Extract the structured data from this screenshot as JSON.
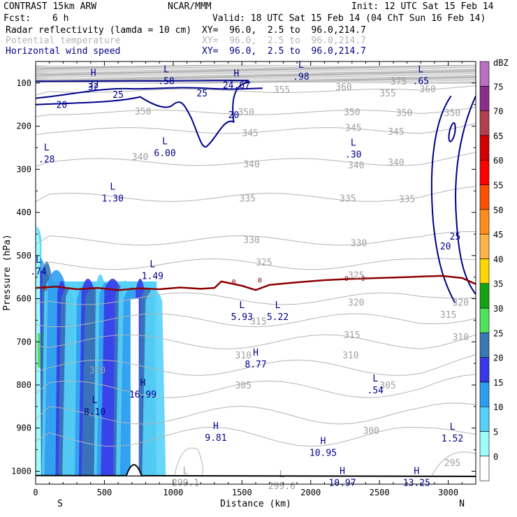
{
  "header": {
    "model": "CONTRAST 15km ARW",
    "center": "NCAR/MMM",
    "init": "Init: 12 UTC Sat 15 Feb 14",
    "fcst_label": "Fcst:",
    "fcst_value": "6 h",
    "valid": "Valid: 18 UTC Sat 15 Feb 14 (04 ChT Sun 16 Feb 14)"
  },
  "fields": [
    {
      "name": "Radar reflectivity (lamda = 10 cm)",
      "xy": "XY=  96.0,  2.5 to  96.0,214.7",
      "color": "#000000"
    },
    {
      "name": "Potential temperature",
      "xy": "XY=  96.0,  2.5 to  96.0,214.7",
      "color": "#b4b4b4"
    },
    {
      "name": "Horizontal wind speed",
      "xy": "XY=  96.0,  2.5 to  96.0,214.7",
      "color": "#00008b"
    }
  ],
  "chart_data": {
    "type": "cross-section",
    "xlabel": "Distance (km)",
    "ylabel": "Pressure (hPa)",
    "xlim": [
      0,
      3200
    ],
    "ylim": [
      1030,
      50
    ],
    "x_ticks": [
      0,
      500,
      1000,
      1500,
      2000,
      2500,
      3000
    ],
    "y_ticks": [
      100,
      200,
      300,
      400,
      500,
      600,
      700,
      800,
      900,
      1000
    ],
    "x_end_labels": {
      "left": "S",
      "right": "N"
    },
    "colorbar": {
      "title": "dBZ",
      "levels": [
        0,
        5,
        10,
        15,
        20,
        25,
        30,
        35,
        40,
        45,
        50,
        55,
        60,
        65,
        70,
        75
      ],
      "colors": [
        "#ffffff",
        "#9ffcfc",
        "#56d2fa",
        "#2f9df0",
        "#3838e8",
        "#3878b4",
        "#4fe15a",
        "#13a313",
        "#ffd700",
        "#ffb347",
        "#ff8c1a",
        "#ff5000",
        "#ff0000",
        "#d20000",
        "#b04050",
        "#8a2e8a",
        "#b870c0"
      ]
    },
    "reflectivity_columns": [
      {
        "x": 10,
        "top": 420
      },
      {
        "x": 25,
        "top": 490
      },
      {
        "x": 50,
        "top": 520
      },
      {
        "x": 80,
        "top": 500
      },
      {
        "x": 110,
        "top": 540
      },
      {
        "x": 150,
        "top": 520
      },
      {
        "x": 190,
        "top": 545
      },
      {
        "x": 230,
        "top": 560
      },
      {
        "x": 280,
        "top": 555
      },
      {
        "x": 330,
        "top": 565
      },
      {
        "x": 380,
        "top": 540
      },
      {
        "x": 420,
        "top": 560
      },
      {
        "x": 470,
        "top": 530
      },
      {
        "x": 510,
        "top": 550
      },
      {
        "x": 560,
        "top": 540
      },
      {
        "x": 610,
        "top": 555
      },
      {
        "x": 650,
        "top": 545
      },
      {
        "x": 700,
        "top": 560
      },
      {
        "x": 760,
        "top": 540
      },
      {
        "x": 810,
        "top": 560
      },
      {
        "x": 860,
        "top": 565
      }
    ],
    "freezing_level": {
      "label": "0",
      "pressure": [
        575,
        572,
        578,
        575,
        580,
        576,
        578,
        574,
        577,
        575,
        560,
        570,
        580,
        568,
        562,
        557,
        554,
        552,
        550,
        548,
        547,
        552,
        566
      ],
      "x": [
        0,
        150,
        300,
        450,
        600,
        750,
        900,
        1050,
        1200,
        1300,
        1350,
        1500,
        1600,
        1700,
        1900,
        2100,
        2300,
        2500,
        2700,
        2850,
        2950,
        3100,
        3200
      ]
    },
    "theta_labels": [
      {
        "value": "375",
        "x": 2640,
        "p": 95
      },
      {
        "value": "355",
        "x": 1790,
        "p": 115
      },
      {
        "value": "360",
        "x": 2240,
        "p": 108
      },
      {
        "value": "360",
        "x": 2850,
        "p": 113
      },
      {
        "value": "355",
        "x": 2560,
        "p": 123
      },
      {
        "value": "350",
        "x": 1530,
        "p": 167
      },
      {
        "value": "350",
        "x": 2300,
        "p": 167
      },
      {
        "value": "350",
        "x": 2680,
        "p": 168
      },
      {
        "value": "350",
        "x": 3030,
        "p": 168
      },
      {
        "value": "350",
        "x": 780,
        "p": 165
      },
      {
        "value": "345",
        "x": 1560,
        "p": 215
      },
      {
        "value": "345",
        "x": 2310,
        "p": 203
      },
      {
        "value": "345",
        "x": 2620,
        "p": 212
      },
      {
        "value": "340",
        "x": 760,
        "p": 270
      },
      {
        "value": "340",
        "x": 1570,
        "p": 287
      },
      {
        "value": "340",
        "x": 2330,
        "p": 290
      },
      {
        "value": "340",
        "x": 2620,
        "p": 283
      },
      {
        "value": "335",
        "x": 1540,
        "p": 367
      },
      {
        "value": "335",
        "x": 2270,
        "p": 367
      },
      {
        "value": "335",
        "x": 2700,
        "p": 368
      },
      {
        "value": "330",
        "x": 1570,
        "p": 463
      },
      {
        "value": "330",
        "x": 2350,
        "p": 470
      },
      {
        "value": "325",
        "x": 1660,
        "p": 515
      },
      {
        "value": "325",
        "x": 2330,
        "p": 545
      },
      {
        "value": "320",
        "x": 2330,
        "p": 608
      },
      {
        "value": "320",
        "x": 3090,
        "p": 608
      },
      {
        "value": "315",
        "x": 1620,
        "p": 652
      },
      {
        "value": "315",
        "x": 2300,
        "p": 683
      },
      {
        "value": "315",
        "x": 3000,
        "p": 636
      },
      {
        "value": "310",
        "x": 2290,
        "p": 730
      },
      {
        "value": "310",
        "x": 3090,
        "p": 688
      },
      {
        "value": "310",
        "x": 450,
        "p": 765
      },
      {
        "value": "305",
        "x": 1510,
        "p": 800
      },
      {
        "value": "305",
        "x": 2560,
        "p": 800
      },
      {
        "value": "300",
        "x": 2440,
        "p": 905
      },
      {
        "value": "295",
        "x": 3030,
        "p": 980
      },
      {
        "value": "310",
        "x": 1510,
        "p": 730
      }
    ],
    "wind_labels": [
      {
        "value": "32",
        "x": 420,
        "p": 108
      },
      {
        "value": "25",
        "x": 600,
        "p": 126
      },
      {
        "value": "20",
        "x": 190,
        "p": 150
      },
      {
        "value": "25",
        "x": 1210,
        "p": 123
      },
      {
        "value": "20",
        "x": 1440,
        "p": 173
      },
      {
        "value": "25",
        "x": 3050,
        "p": 455
      },
      {
        "value": "20",
        "x": 2980,
        "p": 478
      }
    ],
    "extrema": [
      {
        "kind": "H",
        "value": "32",
        "x": 420,
        "p": 91
      },
      {
        "kind": "L",
        "value": ".58",
        "x": 950,
        "p": 83
      },
      {
        "kind": "H",
        "value": "24.67",
        "x": 1460,
        "p": 93
      },
      {
        "kind": "L",
        "value": ".98",
        "x": 1930,
        "p": 73
      },
      {
        "kind": "L",
        "value": ".65",
        "x": 2800,
        "p": 83
      },
      {
        "kind": "L",
        "value": ".28",
        "x": 80,
        "p": 265
      },
      {
        "kind": "L",
        "value": "6.00",
        "x": 940,
        "p": 250
      },
      {
        "kind": "L",
        "value": ".30",
        "x": 2310,
        "p": 253
      },
      {
        "kind": "L",
        "value": "1.30",
        "x": 560,
        "p": 355
      },
      {
        "kind": "L",
        "value": ".74",
        "x": 20,
        "p": 525
      },
      {
        "kind": "L",
        "value": "1.49",
        "x": 850,
        "p": 535
      },
      {
        "kind": "L",
        "value": "5.93",
        "x": 1500,
        "p": 630
      },
      {
        "kind": "L",
        "value": "5.22",
        "x": 1760,
        "p": 630
      },
      {
        "kind": "H",
        "value": "8.77",
        "x": 1600,
        "p": 740
      },
      {
        "kind": "L",
        "value": ".54",
        "x": 2470,
        "p": 800
      },
      {
        "kind": "H",
        "value": "16.99",
        "x": 780,
        "p": 810
      },
      {
        "kind": "L",
        "value": "8.10",
        "x": 430,
        "p": 850
      },
      {
        "kind": "H",
        "value": "9.81",
        "x": 1310,
        "p": 910
      },
      {
        "kind": "L",
        "value": "1.52",
        "x": 3030,
        "p": 912
      },
      {
        "kind": "H",
        "value": "10.95",
        "x": 2090,
        "p": 945
      },
      {
        "kind": "L",
        "value": "299.1",
        "x": 1090,
        "p": 1015,
        "theta": true
      },
      {
        "kind": "L",
        "value": "299.6",
        "x": 1790,
        "p": 1022,
        "theta": true
      },
      {
        "kind": "H",
        "value": "10.97",
        "x": 2230,
        "p": 1015
      },
      {
        "kind": "H",
        "value": "13.25",
        "x": 2770,
        "p": 1015
      }
    ]
  }
}
